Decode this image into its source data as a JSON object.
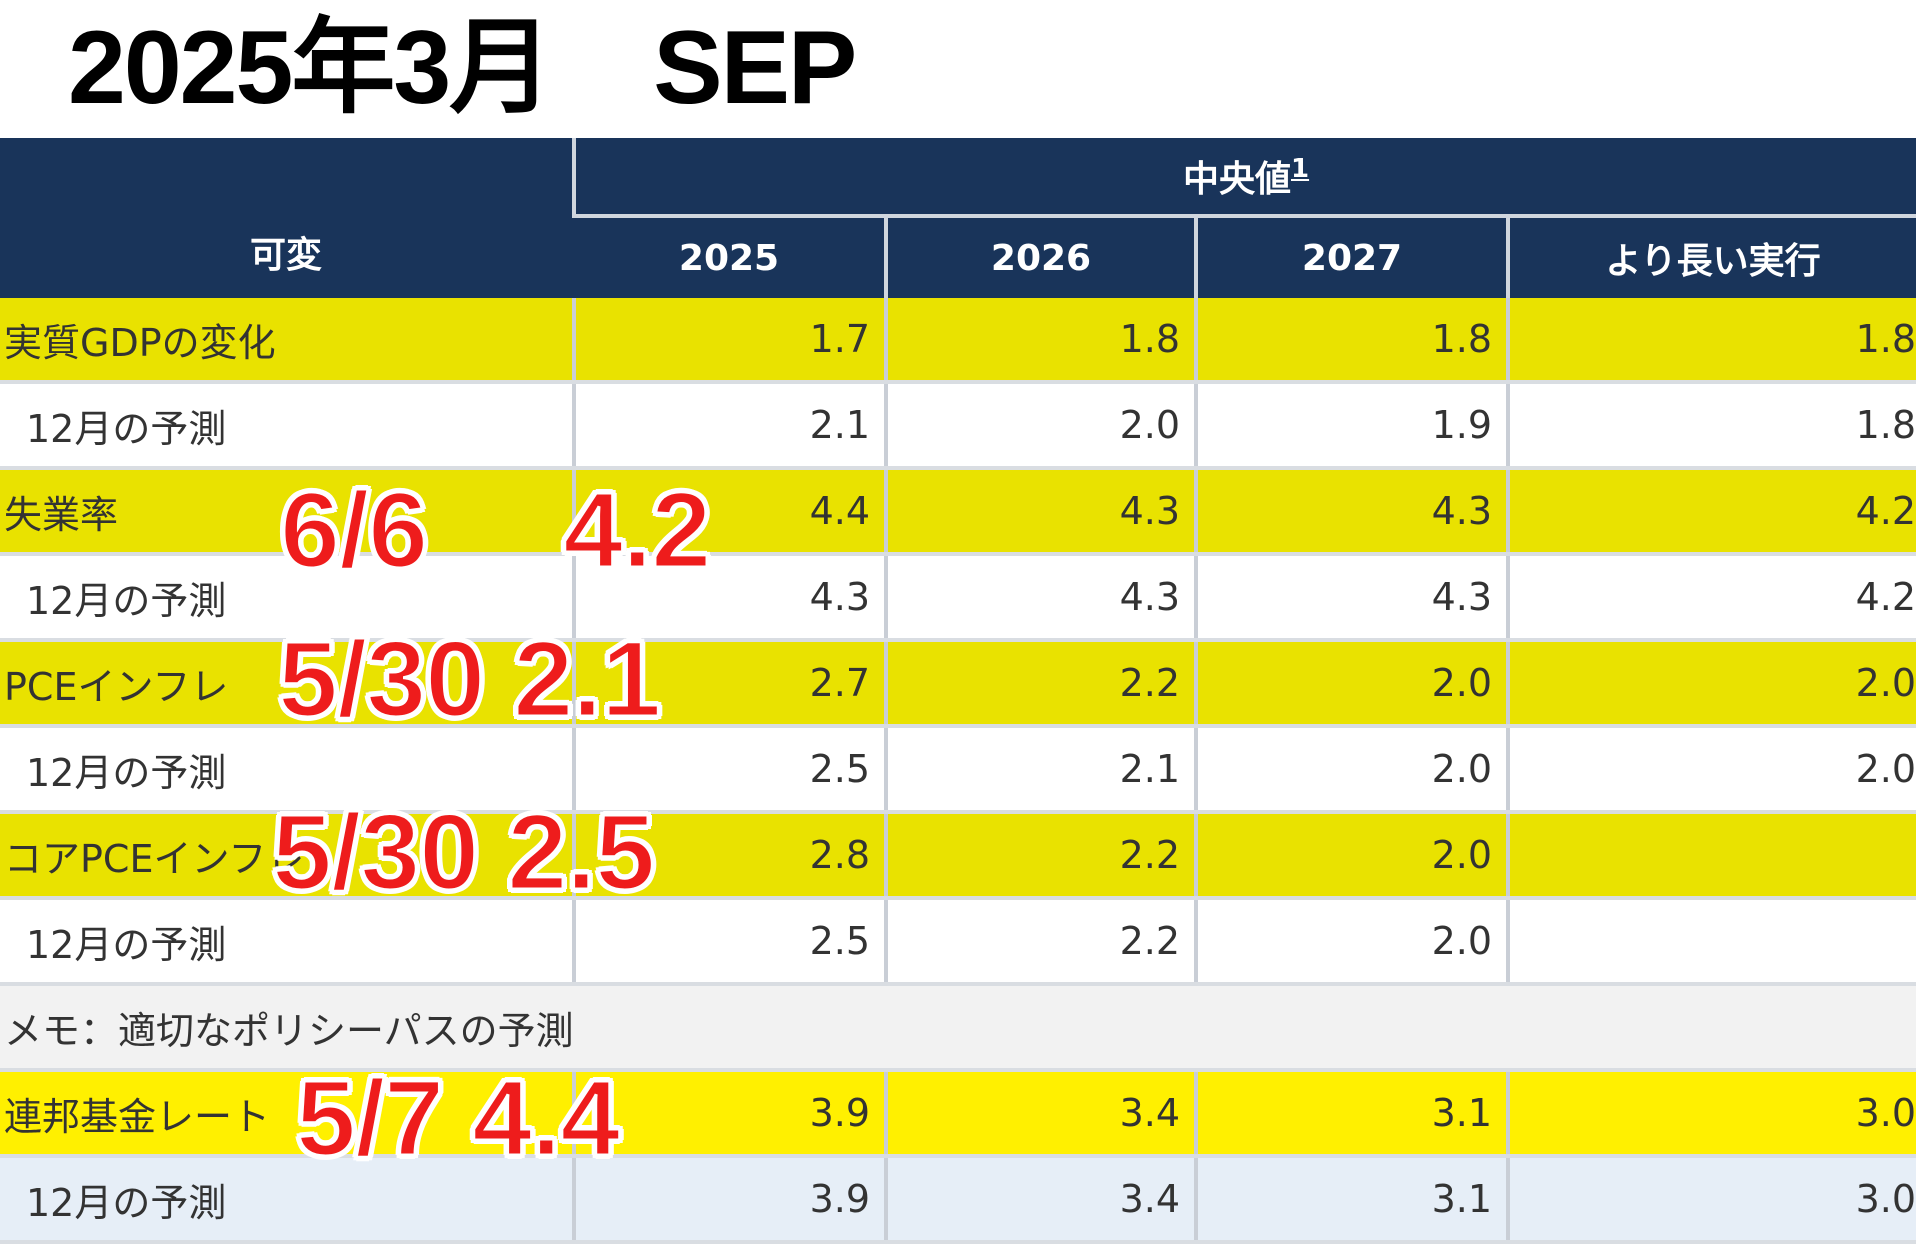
{
  "title": "2025年3月　SEP",
  "table": {
    "header_variable": "可変",
    "header_group": "中央値",
    "header_group_note": "1",
    "years": [
      "2025",
      "2026",
      "2027",
      "より長い実行"
    ],
    "rows": [
      {
        "label": "実質GDPの変化",
        "values": [
          "1.7",
          "1.8",
          "1.8",
          "1.8"
        ]
      },
      {
        "label": "12月の予測",
        "values": [
          "2.1",
          "2.0",
          "1.9",
          "1.8"
        ]
      },
      {
        "label": "失業率",
        "values": [
          "4.4",
          "4.3",
          "4.3",
          "4.2"
        ]
      },
      {
        "label": "12月の予測",
        "values": [
          "4.3",
          "4.3",
          "4.3",
          "4.2"
        ]
      },
      {
        "label": "PCEインフレ",
        "values": [
          "2.7",
          "2.2",
          "2.0",
          "2.0"
        ]
      },
      {
        "label": "12月の予測",
        "values": [
          "2.5",
          "2.1",
          "2.0",
          "2.0"
        ]
      },
      {
        "label": "コアPCEインフレ",
        "values": [
          "2.8",
          "2.2",
          "2.0",
          ""
        ]
      },
      {
        "label": "12月の予測",
        "values": [
          "2.5",
          "2.2",
          "2.0",
          ""
        ]
      },
      {
        "label": "メモ：適切なポリシーパスの予測"
      },
      {
        "label": "連邦基金レート",
        "values": [
          "3.9",
          "3.4",
          "3.1",
          "3.0"
        ]
      },
      {
        "label": "12月の予測",
        "values": [
          "3.9",
          "3.4",
          "3.1",
          "3.0"
        ]
      }
    ]
  },
  "annotations": {
    "unemployment": "6/6　 4.2",
    "pce": "5/30 2.1",
    "core_pce": "5/30 2.5",
    "fed_funds": "5/7 4.4"
  },
  "colors": {
    "header_bg": "#19345a",
    "highlight": "#e9e200",
    "highlight_bright": "#fff000",
    "annotation": "#ee1c1c"
  }
}
